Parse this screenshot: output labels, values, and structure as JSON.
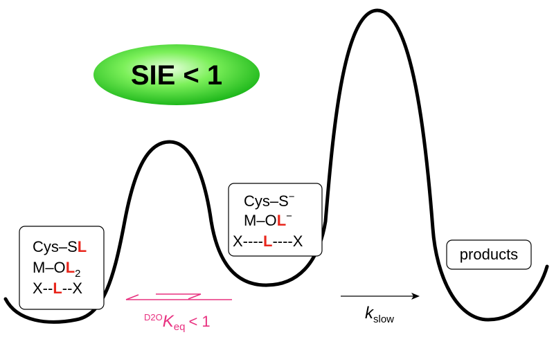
{
  "badge": {
    "label": "SIE < 1"
  },
  "reactant": {
    "lines": [
      [
        "Cys–S",
        "L"
      ],
      [
        "M–O",
        "L",
        "2"
      ],
      [
        "X--",
        "L",
        "--X"
      ]
    ]
  },
  "intermediate": {
    "lines": [
      [
        "Cys–S",
        "−"
      ],
      [
        "M–O",
        "L",
        "−"
      ],
      [
        "X----",
        "L",
        "----X"
      ]
    ]
  },
  "product": {
    "label": "products"
  },
  "equilibrium": {
    "prefix": "D2O",
    "symbol": "K",
    "subscript": "eq",
    "relation": "< 1"
  },
  "rate": {
    "symbol": "k",
    "subscript": "slow"
  }
}
